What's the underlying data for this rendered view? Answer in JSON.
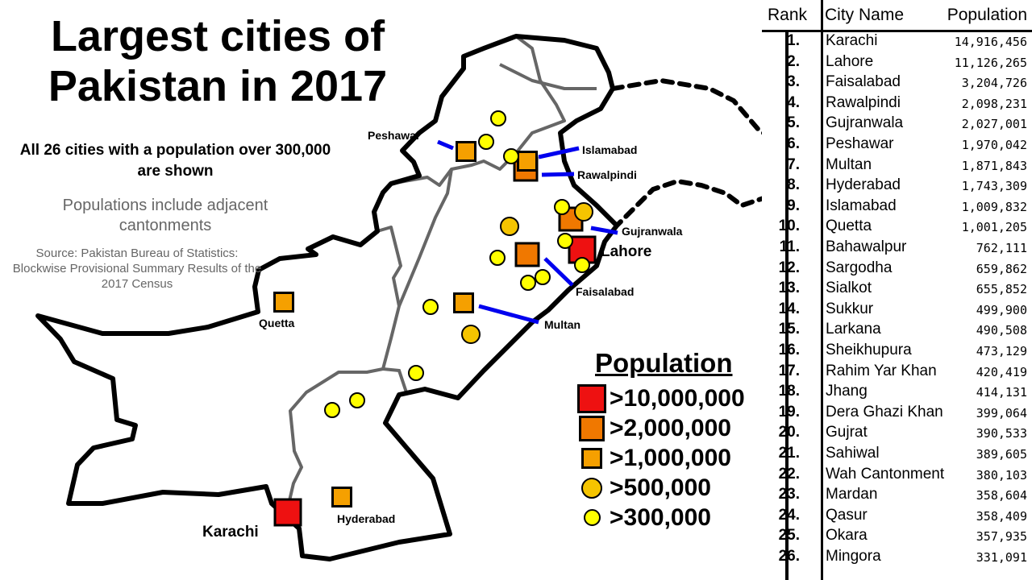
{
  "title": "Largest cities of Pakistan in 2017",
  "subtitle": "All 26 cities with a population over 300,000 are shown",
  "note": "Populations include adjacent cantonments",
  "source": "Source: Pakistan Bureau of Statistics: Blockwise Provisional Summary Results of the 2017 Census",
  "colors": {
    "over_10m": "#ee1111",
    "over_2m": "#f07800",
    "over_1m": "#f5a000",
    "over_500k": "#f5c400",
    "over_300k": "#ffff00",
    "leader_line": "#0000ee",
    "border": "#000000",
    "province_border": "#666666"
  },
  "map_labels": {
    "karachi": "Karachi",
    "lahore": "Lahore",
    "faisalabad": "Faisalabad",
    "rawalpindi": "Rawalpindi",
    "gujranwala": "Gujranwala",
    "peshawar": "Peshawar",
    "multan": "Multan",
    "hyderabad": "Hyderabad",
    "islamabad": "Islamabad",
    "quetta": "Quetta"
  },
  "legend": {
    "title": "Population",
    "items": [
      {
        "label": ">10,000,000",
        "symbol": "large-red-square"
      },
      {
        "label": ">2,000,000",
        "symbol": "orange-square"
      },
      {
        "label": ">1,000,000",
        "symbol": "small-orange-square"
      },
      {
        "label": ">500,000",
        "symbol": "gold-circle"
      },
      {
        "label": ">300,000",
        "symbol": "yellow-circle"
      }
    ]
  },
  "table": {
    "headers": [
      "Rank",
      "City Name",
      "Population"
    ],
    "rows": [
      {
        "rank": "1.",
        "city": "Karachi",
        "population": "14,916,456"
      },
      {
        "rank": "2.",
        "city": "Lahore",
        "population": "11,126,265"
      },
      {
        "rank": "3.",
        "city": "Faisalabad",
        "population": "3,204,726"
      },
      {
        "rank": "4.",
        "city": "Rawalpindi",
        "population": "2,098,231"
      },
      {
        "rank": "5.",
        "city": "Gujranwala",
        "population": "2,027,001"
      },
      {
        "rank": "6.",
        "city": "Peshawar",
        "population": "1,970,042"
      },
      {
        "rank": "7.",
        "city": "Multan",
        "population": "1,871,843"
      },
      {
        "rank": "8.",
        "city": "Hyderabad",
        "population": "1,743,309"
      },
      {
        "rank": "9.",
        "city": "Islamabad",
        "population": "1,009,832"
      },
      {
        "rank": "10.",
        "city": "Quetta",
        "population": "1,001,205"
      },
      {
        "rank": "11.",
        "city": "Bahawalpur",
        "population": "762,111"
      },
      {
        "rank": "12.",
        "city": "Sargodha",
        "population": "659,862"
      },
      {
        "rank": "13.",
        "city": "Sialkot",
        "population": "655,852"
      },
      {
        "rank": "14.",
        "city": "Sukkur",
        "population": "499,900"
      },
      {
        "rank": "15.",
        "city": "Larkana",
        "population": "490,508"
      },
      {
        "rank": "16.",
        "city": "Sheikhupura",
        "population": "473,129"
      },
      {
        "rank": "17.",
        "city": "Rahim Yar Khan",
        "population": "420,419"
      },
      {
        "rank": "18.",
        "city": "Jhang",
        "population": "414,131"
      },
      {
        "rank": "19.",
        "city": "Dera Ghazi Khan",
        "population": "399,064"
      },
      {
        "rank": "20.",
        "city": "Gujrat",
        "population": "390,533"
      },
      {
        "rank": "21.",
        "city": "Sahiwal",
        "population": "389,605"
      },
      {
        "rank": "22.",
        "city": "Wah Cantonment",
        "population": "380,103"
      },
      {
        "rank": "23.",
        "city": "Mardan",
        "population": "358,604"
      },
      {
        "rank": "24.",
        "city": "Qasur",
        "population": "358,409"
      },
      {
        "rank": "25.",
        "city": "Okara",
        "population": "357,935"
      },
      {
        "rank": "26.",
        "city": "Mingora",
        "population": "331,091"
      }
    ]
  }
}
